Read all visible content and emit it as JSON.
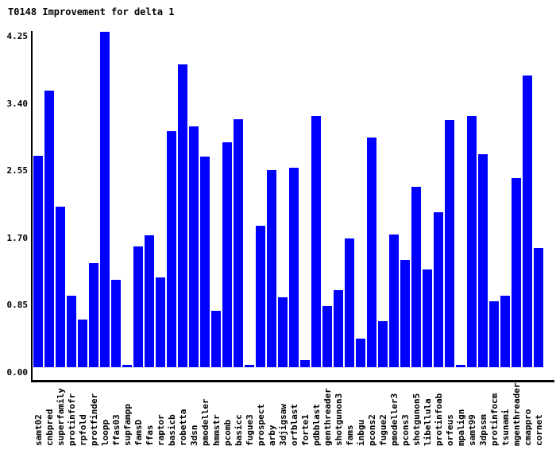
{
  "title": "T0148 Improvement for delta 1",
  "chart_data": {
    "type": "bar",
    "title": "T0148 Improvement for delta 1",
    "bar_color": "#0000ff",
    "axis_color": "#000000",
    "background_color": "#ffffff",
    "grid": false,
    "legend": false,
    "xlabel": "",
    "ylabel": "",
    "ylim": [
      0,
      4.25
    ],
    "yticks": [
      0.0,
      0.85,
      1.7,
      2.55,
      3.4,
      4.25
    ],
    "ytick_labels": [
      "0.00",
      "0.85",
      "1.70",
      "2.55",
      "3.40",
      "4.25"
    ],
    "categories": [
      "samt02",
      "cnbpred",
      "superfamily",
      "protinfofr",
      "rpfold",
      "protfinder",
      "loopp",
      "ffas03",
      "supfampp",
      "famsD",
      "ffas",
      "raptor",
      "basicb",
      "robetta",
      "3dsn",
      "pmodeller",
      "hmmstr",
      "pcomb",
      "basicc",
      "fugue3",
      "prospect",
      "arby",
      "3djigsaw",
      "orfblast",
      "forte1",
      "pdbblast",
      "genthreader",
      "shotgunon3",
      "fams",
      "inbgu",
      "pcons2",
      "fugue2",
      "pmodeller3",
      "pcons3",
      "shotgunon5",
      "libellula",
      "protinfoab",
      "orfeus",
      "mpalign",
      "samt99",
      "3dpssm",
      "protinfocm",
      "tsunami",
      "mgenthreader",
      "cmappro",
      "cornet"
    ],
    "values": [
      2.69,
      3.52,
      2.04,
      0.91,
      0.61,
      1.32,
      4.26,
      1.11,
      0.03,
      1.54,
      1.68,
      1.14,
      3.0,
      3.85,
      3.06,
      2.68,
      0.72,
      2.86,
      3.15,
      0.03,
      1.8,
      2.51,
      0.89,
      2.54,
      0.09,
      3.19,
      0.78,
      0.98,
      1.64,
      0.36,
      2.92,
      0.59,
      1.69,
      1.36,
      2.29,
      1.24,
      1.97,
      3.14,
      0.03,
      3.19,
      2.71,
      0.84,
      0.91,
      2.4,
      3.71,
      1.52
    ]
  }
}
